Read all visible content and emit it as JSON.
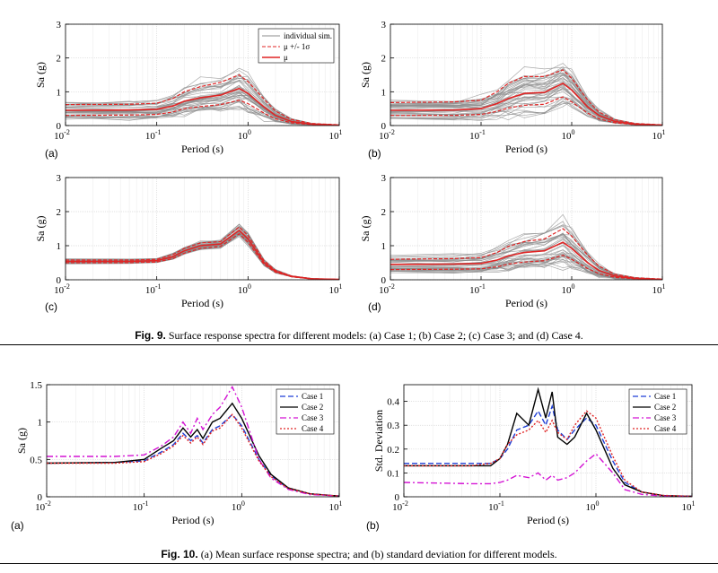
{
  "fig9": {
    "label": "Fig. 9.",
    "caption": "Surface response spectra for different models: (a) Case 1; (b) Case 2; (c) Case 3; and (d) Case 4."
  },
  "fig10": {
    "label": "Fig. 10.",
    "caption": "(a) Mean surface response spectra; and (b) standard deviation for different models."
  },
  "colors": {
    "sim": "#8c8c8c",
    "mean": "#e02424",
    "case1": "#1f3fd6",
    "case2": "#000000",
    "case3": "#d414d4",
    "case4": "#e02424"
  },
  "chart_data": [
    {
      "id": "fig9a",
      "type": "line",
      "panel": "(a)",
      "xlabel": "Period (s)",
      "ylabel": "Sa (g)",
      "xscale": "log",
      "xlim": [
        0.01,
        10
      ],
      "ylim": [
        0,
        3
      ],
      "yticks": [
        0,
        1,
        2,
        3
      ],
      "xticks": [
        "10^-2",
        "10^-1",
        "10^0",
        "10^1"
      ],
      "legend": [
        "individual sim.",
        "μ +/- 1σ",
        "μ"
      ],
      "legend_position": "top-right",
      "x": [
        0.01,
        0.05,
        0.1,
        0.15,
        0.2,
        0.3,
        0.5,
        0.8,
        1.0,
        1.5,
        2,
        3,
        5,
        10
      ],
      "series": [
        {
          "name": "μ",
          "values": [
            0.45,
            0.46,
            0.48,
            0.58,
            0.72,
            0.82,
            0.9,
            1.1,
            0.95,
            0.55,
            0.3,
            0.12,
            0.04,
            0.01
          ]
        },
        {
          "name": "μ +/- 1σ",
          "role": "upper",
          "values": [
            0.62,
            0.63,
            0.66,
            0.8,
            1.0,
            1.15,
            1.28,
            1.5,
            1.3,
            0.78,
            0.43,
            0.18,
            0.06,
            0.02
          ]
        },
        {
          "name": "μ +/- 1σ",
          "role": "lower",
          "values": [
            0.3,
            0.31,
            0.33,
            0.4,
            0.5,
            0.56,
            0.62,
            0.75,
            0.65,
            0.37,
            0.2,
            0.08,
            0.03,
            0.01
          ]
        }
      ]
    },
    {
      "id": "fig9b",
      "type": "line",
      "panel": "(b)",
      "xlabel": "Period (s)",
      "ylabel": "Sa (g)",
      "xscale": "log",
      "xlim": [
        0.01,
        10
      ],
      "ylim": [
        0,
        3
      ],
      "yticks": [
        0,
        1,
        2,
        3
      ],
      "xticks": [
        "10^-2",
        "10^-1",
        "10^0",
        "10^1"
      ],
      "x": [
        0.01,
        0.05,
        0.1,
        0.15,
        0.2,
        0.3,
        0.5,
        0.8,
        1.0,
        1.5,
        2,
        3,
        5,
        10
      ],
      "series": [
        {
          "name": "μ",
          "values": [
            0.45,
            0.46,
            0.5,
            0.65,
            0.8,
            0.95,
            0.98,
            1.25,
            1.05,
            0.55,
            0.3,
            0.12,
            0.04,
            0.01
          ]
        },
        {
          "name": "μ +/- 1σ",
          "role": "upper",
          "values": [
            0.68,
            0.7,
            0.75,
            1.0,
            1.25,
            1.45,
            1.45,
            1.65,
            1.4,
            0.75,
            0.4,
            0.17,
            0.06,
            0.02
          ]
        },
        {
          "name": "μ +/- 1σ",
          "role": "lower",
          "values": [
            0.3,
            0.3,
            0.33,
            0.42,
            0.52,
            0.6,
            0.63,
            0.85,
            0.7,
            0.37,
            0.2,
            0.08,
            0.03,
            0.01
          ]
        }
      ]
    },
    {
      "id": "fig9c",
      "type": "line",
      "panel": "(c)",
      "xlabel": "Period (s)",
      "ylabel": "Sa (g)",
      "xscale": "log",
      "xlim": [
        0.01,
        10
      ],
      "ylim": [
        0,
        3
      ],
      "yticks": [
        0,
        1,
        2,
        3
      ],
      "xticks": [
        "10^-2",
        "10^-1",
        "10^0",
        "10^1"
      ],
      "x": [
        0.01,
        0.05,
        0.1,
        0.15,
        0.2,
        0.3,
        0.5,
        0.8,
        1.0,
        1.5,
        2,
        3,
        5,
        10
      ],
      "series": [
        {
          "name": "μ",
          "values": [
            0.54,
            0.54,
            0.56,
            0.68,
            0.85,
            1.0,
            1.05,
            1.45,
            1.2,
            0.5,
            0.25,
            0.1,
            0.03,
            0.01
          ]
        },
        {
          "name": "μ +/- 1σ",
          "role": "upper",
          "values": [
            0.58,
            0.58,
            0.6,
            0.74,
            0.92,
            1.08,
            1.12,
            1.55,
            1.3,
            0.56,
            0.28,
            0.11,
            0.035,
            0.01
          ]
        },
        {
          "name": "μ +/- 1σ",
          "role": "lower",
          "values": [
            0.5,
            0.5,
            0.52,
            0.62,
            0.78,
            0.92,
            0.98,
            1.35,
            1.1,
            0.45,
            0.22,
            0.09,
            0.025,
            0.01
          ]
        }
      ]
    },
    {
      "id": "fig9d",
      "type": "line",
      "panel": "(d)",
      "xlabel": "Period (s)",
      "ylabel": "Sa (g)",
      "xscale": "log",
      "xlim": [
        0.01,
        10
      ],
      "ylim": [
        0,
        3
      ],
      "yticks": [
        0,
        1,
        2,
        3
      ],
      "xticks": [
        "10^-2",
        "10^-1",
        "10^0",
        "10^1"
      ],
      "x": [
        0.01,
        0.05,
        0.1,
        0.15,
        0.2,
        0.3,
        0.5,
        0.8,
        1.0,
        1.5,
        2,
        3,
        5,
        10
      ],
      "series": [
        {
          "name": "μ",
          "values": [
            0.45,
            0.46,
            0.48,
            0.58,
            0.7,
            0.8,
            0.85,
            1.1,
            0.92,
            0.5,
            0.27,
            0.11,
            0.04,
            0.01
          ]
        },
        {
          "name": "μ +/- 1σ",
          "role": "upper",
          "values": [
            0.6,
            0.62,
            0.65,
            0.8,
            0.98,
            1.12,
            1.2,
            1.5,
            1.28,
            0.72,
            0.4,
            0.16,
            0.06,
            0.02
          ]
        },
        {
          "name": "μ +/- 1σ",
          "role": "lower",
          "values": [
            0.3,
            0.31,
            0.32,
            0.38,
            0.46,
            0.52,
            0.56,
            0.72,
            0.6,
            0.33,
            0.18,
            0.07,
            0.03,
            0.01
          ]
        }
      ]
    },
    {
      "id": "fig10a",
      "type": "line",
      "panel": "(a)",
      "xlabel": "Period (s)",
      "ylabel": "Sa (g)",
      "xscale": "log",
      "xlim": [
        0.01,
        10
      ],
      "ylim": [
        0,
        1.5
      ],
      "yticks": [
        0,
        0.5,
        1,
        1.5
      ],
      "xticks": [
        "10^-2",
        "10^-1",
        "10^0",
        "10^1"
      ],
      "legend": [
        "Case 1",
        "Case 2",
        "Case 3",
        "Case 4"
      ],
      "legend_position": "top-right",
      "x": [
        0.01,
        0.05,
        0.1,
        0.15,
        0.2,
        0.25,
        0.3,
        0.35,
        0.4,
        0.5,
        0.6,
        0.8,
        1.0,
        1.5,
        2,
        3,
        5,
        10
      ],
      "series": [
        {
          "name": "Case 1",
          "values": [
            0.45,
            0.46,
            0.48,
            0.6,
            0.7,
            0.85,
            0.75,
            0.82,
            0.72,
            0.9,
            0.95,
            1.1,
            0.95,
            0.5,
            0.28,
            0.11,
            0.04,
            0.01
          ]
        },
        {
          "name": "Case 2",
          "values": [
            0.45,
            0.46,
            0.5,
            0.65,
            0.75,
            0.92,
            0.8,
            0.9,
            0.78,
            1.0,
            1.05,
            1.25,
            1.05,
            0.55,
            0.3,
            0.12,
            0.04,
            0.01
          ]
        },
        {
          "name": "Case 3",
          "values": [
            0.54,
            0.54,
            0.56,
            0.68,
            0.8,
            1.0,
            0.85,
            1.05,
            0.9,
            1.1,
            1.2,
            1.47,
            1.2,
            0.5,
            0.25,
            0.1,
            0.03,
            0.01
          ]
        },
        {
          "name": "Case 4",
          "values": [
            0.45,
            0.45,
            0.47,
            0.58,
            0.68,
            0.82,
            0.72,
            0.8,
            0.7,
            0.88,
            0.92,
            1.1,
            0.92,
            0.48,
            0.27,
            0.11,
            0.04,
            0.01
          ]
        }
      ]
    },
    {
      "id": "fig10b",
      "type": "line",
      "panel": "(b)",
      "xlabel": "Period (s)",
      "ylabel": "Std. Deviation",
      "xscale": "log",
      "xlim": [
        0.01,
        10
      ],
      "ylim": [
        0,
        0.47
      ],
      "yticks": [
        0,
        0.1,
        0.2,
        0.3,
        0.4
      ],
      "xticks": [
        "10^-2",
        "10^-1",
        "10^0",
        "10^1"
      ],
      "legend": [
        "Case 1",
        "Case 2",
        "Case 3",
        "Case 4"
      ],
      "legend_position": "top-right",
      "x": [
        0.01,
        0.05,
        0.08,
        0.1,
        0.12,
        0.15,
        0.2,
        0.25,
        0.3,
        0.35,
        0.4,
        0.5,
        0.6,
        0.8,
        1.0,
        1.5,
        2,
        3,
        5,
        10
      ],
      "series": [
        {
          "name": "Case 1",
          "values": [
            0.14,
            0.14,
            0.14,
            0.16,
            0.2,
            0.28,
            0.3,
            0.36,
            0.3,
            0.38,
            0.28,
            0.24,
            0.28,
            0.33,
            0.3,
            0.15,
            0.06,
            0.02,
            0.005,
            0.002
          ]
        },
        {
          "name": "Case 2",
          "values": [
            0.13,
            0.13,
            0.13,
            0.16,
            0.22,
            0.35,
            0.3,
            0.45,
            0.33,
            0.44,
            0.25,
            0.22,
            0.25,
            0.35,
            0.28,
            0.12,
            0.05,
            0.02,
            0.005,
            0.002
          ]
        },
        {
          "name": "Case 3",
          "values": [
            0.06,
            0.055,
            0.055,
            0.06,
            0.07,
            0.09,
            0.08,
            0.1,
            0.07,
            0.09,
            0.07,
            0.08,
            0.1,
            0.15,
            0.18,
            0.1,
            0.03,
            0.01,
            0.003,
            0.001
          ]
        },
        {
          "name": "Case 4",
          "values": [
            0.13,
            0.13,
            0.14,
            0.16,
            0.22,
            0.26,
            0.28,
            0.32,
            0.27,
            0.32,
            0.27,
            0.24,
            0.3,
            0.36,
            0.33,
            0.17,
            0.07,
            0.02,
            0.006,
            0.002
          ]
        }
      ]
    }
  ]
}
